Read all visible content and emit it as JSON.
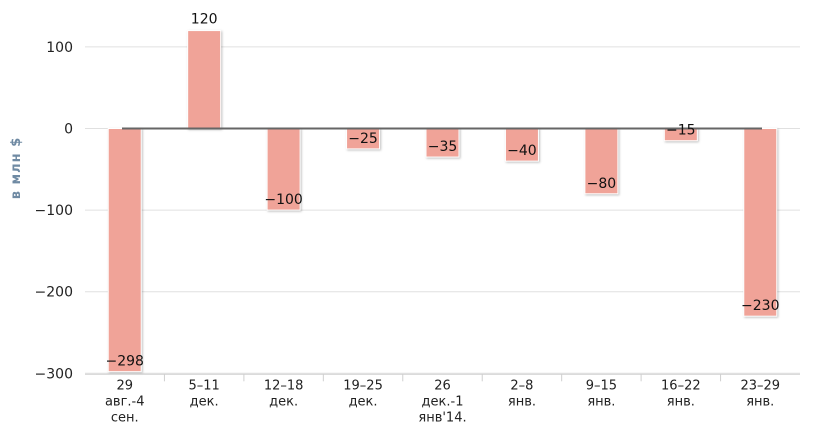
{
  "chart_data": {
    "type": "bar",
    "title": "",
    "xlabel": "",
    "ylabel": "в млн $",
    "ylim": [
      -300,
      150
    ],
    "yticks": [
      100,
      0,
      -100,
      -200,
      -300
    ],
    "ytick_labels": [
      "100",
      "0",
      "−100",
      "−200",
      "−300"
    ],
    "grid": true,
    "legend": "none",
    "categories": [
      [
        "29",
        "авг.-4",
        "сен."
      ],
      [
        "5–11",
        "дек."
      ],
      [
        "12–18",
        "дек."
      ],
      [
        "19–25",
        "дек."
      ],
      [
        "26",
        "дек.-1",
        "янв'14."
      ],
      [
        "2–8",
        "янв."
      ],
      [
        "9–15",
        "янв."
      ],
      [
        "16–22",
        "янв."
      ],
      [
        "23–29",
        "янв."
      ]
    ],
    "values": [
      -298,
      120,
      -100,
      -25,
      -35,
      -40,
      -80,
      -15,
      -230
    ],
    "value_labels": [
      "−298",
      "120",
      "−100",
      "−25",
      "−35",
      "−40",
      "−80",
      "−15",
      "−230"
    ],
    "colors": {
      "bar": "#f0a398",
      "bar_edge": "#ffffff",
      "zero_line": "#666666",
      "grid": "#e0e0e0",
      "axis_label": "#6f8aa3"
    }
  }
}
